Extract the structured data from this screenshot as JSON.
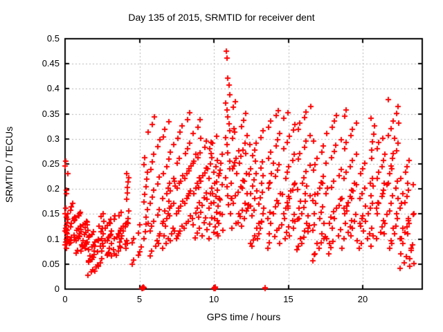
{
  "chart_data": {
    "type": "scatter",
    "title": "Day 135 of 2015, SRMTID for receiver dent",
    "xlabel": "GPS time / hours",
    "ylabel": "SRMTID / TECUs",
    "xlim": [
      0,
      24
    ],
    "ylim": [
      0,
      0.5
    ],
    "xtick_values": [
      0,
      5,
      10,
      15,
      20
    ],
    "xtick_labels": [
      "0",
      "5",
      "10",
      "15",
      "20"
    ],
    "ytick_values": [
      0,
      0.05,
      0.1,
      0.15,
      0.2,
      0.25,
      0.3,
      0.35,
      0.4,
      0.45,
      0.5
    ],
    "ytick_labels": [
      "0",
      "0.05",
      "0.1",
      "0.15",
      "0.2",
      "0.25",
      "0.3",
      "0.35",
      "0.4",
      "0.45",
      "0.5"
    ],
    "grid": true,
    "legend": "none",
    "marker": "plus",
    "marker_color": "#ff0000",
    "grid_color": "#b4b4b4",
    "frame_color": "#000000",
    "series_clusters": [
      {
        "x0": 0.0,
        "x1": 0.18,
        "ys": [
          0.088,
          0.094,
          0.1,
          0.105,
          0.11,
          0.116,
          0.121,
          0.127,
          0.133,
          0.14,
          0.151,
          0.162,
          0.19,
          0.198,
          0.231,
          0.246,
          0.256
        ]
      },
      {
        "x0": 0.05,
        "x1": 0.62,
        "ys": [
          0.082,
          0.091,
          0.097,
          0.104,
          0.108,
          0.113,
          0.118,
          0.124,
          0.131,
          0.137,
          0.144,
          0.151,
          0.158,
          0.165,
          0.171,
          0.119,
          0.099,
          0.092
        ]
      },
      {
        "x0": 0.62,
        "x1": 1.55,
        "ys": [
          0.072,
          0.078,
          0.084,
          0.089,
          0.093,
          0.097,
          0.101,
          0.105,
          0.109,
          0.113,
          0.117,
          0.121,
          0.126,
          0.131,
          0.136,
          0.141,
          0.147,
          0.154,
          0.081,
          0.09,
          0.098,
          0.107,
          0.114,
          0.123,
          0.129,
          0.138,
          0.146,
          0.076,
          0.086,
          0.094,
          0.103,
          0.111,
          0.119,
          0.128,
          0.134,
          0.143,
          0.151,
          0.088,
          0.096,
          0.117
        ]
      },
      {
        "x0": 1.55,
        "x1": 2.25,
        "ys": [
          0.028,
          0.034,
          0.039,
          0.044,
          0.049,
          0.054,
          0.059,
          0.064,
          0.069,
          0.074,
          0.079,
          0.084,
          0.089,
          0.094,
          0.099,
          0.104,
          0.109,
          0.114,
          0.036,
          0.046,
          0.056,
          0.066,
          0.076,
          0.086,
          0.096,
          0.106
        ]
      },
      {
        "x0": 2.3,
        "x1": 3.25,
        "ys": [
          0.052,
          0.061,
          0.067,
          0.073,
          0.079,
          0.085,
          0.091,
          0.097,
          0.103,
          0.109,
          0.115,
          0.121,
          0.127,
          0.133,
          0.139,
          0.145,
          0.151,
          0.071,
          0.081,
          0.091,
          0.101,
          0.111,
          0.121,
          0.131,
          0.066,
          0.076,
          0.086,
          0.096,
          0.106,
          0.116,
          0.126,
          0.136
        ]
      },
      {
        "x0": 3.3,
        "x1": 4.3,
        "ys": [
          0.068,
          0.076,
          0.083,
          0.09,
          0.097,
          0.104,
          0.111,
          0.118,
          0.125,
          0.132,
          0.139,
          0.146,
          0.153,
          0.081,
          0.091,
          0.101,
          0.111,
          0.121,
          0.131,
          0.141,
          0.071,
          0.086,
          0.101,
          0.116,
          0.131,
          0.146,
          0.094,
          0.106,
          0.126,
          0.156
        ]
      },
      {
        "x0": 4.12,
        "x1": 4.3,
        "ys": [
          0.18,
          0.192,
          0.203,
          0.214,
          0.222,
          0.231
        ]
      },
      {
        "x0": 4.4,
        "x1": 5.3,
        "ys": [
          0.05,
          0.058,
          0.067,
          0.075,
          0.084,
          0.092,
          0.101,
          0.112,
          0.128
        ]
      },
      {
        "x0": 5.14,
        "x1": 5.3,
        "ys": [
          0.002,
          0.003,
          0.002,
          0.004,
          0.003
        ]
      },
      {
        "x0": 5.3,
        "x1": 5.56,
        "ys": [
          0.101,
          0.115,
          0.13,
          0.144,
          0.159,
          0.174,
          0.189,
          0.204,
          0.219,
          0.234,
          0.249,
          0.263
        ]
      },
      {
        "x0": 5.6,
        "x1": 6.45,
        "ys": [
          0.066,
          0.076,
          0.086,
          0.096,
          0.106,
          0.116,
          0.126,
          0.136,
          0.148,
          0.159,
          0.171,
          0.184,
          0.197,
          0.21,
          0.224,
          0.239,
          0.254,
          0.269,
          0.284,
          0.299,
          0.314,
          0.329,
          0.344,
          0.091,
          0.111,
          0.131
        ]
      },
      {
        "x0": 6.55,
        "x1": 7.35,
        "ys": [
          0.081,
          0.091,
          0.101,
          0.111,
          0.121,
          0.131,
          0.141,
          0.151,
          0.161,
          0.171,
          0.181,
          0.191,
          0.201,
          0.211,
          0.221,
          0.231,
          0.245,
          0.259,
          0.274,
          0.289,
          0.304,
          0.319,
          0.334,
          0.096,
          0.116,
          0.136,
          0.156,
          0.176,
          0.196,
          0.216,
          0.106,
          0.126,
          0.146,
          0.166
        ]
      },
      {
        "x0": 7.4,
        "x1": 8.55,
        "ys": [
          0.101,
          0.111,
          0.121,
          0.131,
          0.141,
          0.151,
          0.161,
          0.171,
          0.181,
          0.191,
          0.201,
          0.211,
          0.221,
          0.231,
          0.241,
          0.251,
          0.261,
          0.271,
          0.281,
          0.291,
          0.301,
          0.313,
          0.326,
          0.339,
          0.352,
          0.106,
          0.116,
          0.126,
          0.136,
          0.146,
          0.156,
          0.166,
          0.176,
          0.186,
          0.196,
          0.206,
          0.216,
          0.226,
          0.236,
          0.246
        ]
      },
      {
        "x0": 8.6,
        "x1": 9.6,
        "ys": [
          0.102,
          0.112,
          0.122,
          0.132,
          0.142,
          0.152,
          0.162,
          0.172,
          0.182,
          0.192,
          0.202,
          0.212,
          0.222,
          0.232,
          0.242,
          0.252,
          0.262,
          0.272,
          0.283,
          0.296,
          0.311,
          0.323,
          0.339,
          0.107,
          0.119,
          0.129,
          0.143,
          0.153,
          0.167,
          0.179,
          0.191,
          0.203,
          0.215,
          0.227,
          0.241,
          0.256,
          0.269,
          0.301
        ]
      },
      {
        "x0": 9.65,
        "x1": 10.6,
        "ys": [
          0.101,
          0.113,
          0.125,
          0.137,
          0.149,
          0.161,
          0.173,
          0.185,
          0.197,
          0.209,
          0.221,
          0.233,
          0.245,
          0.257,
          0.269,
          0.281,
          0.293,
          0.305,
          0.106,
          0.118,
          0.13,
          0.142,
          0.154,
          0.166,
          0.178,
          0.19,
          0.202,
          0.214,
          0.226,
          0.238,
          0.25,
          0.262,
          0.111,
          0.131,
          0.151,
          0.171,
          0.191,
          0.211,
          0.231,
          0.251,
          0.271,
          0.291,
          0.141,
          0.181
        ]
      },
      {
        "x0": 10.0,
        "x1": 10.14,
        "ys": [
          0.002,
          0.003,
          0.002,
          0.004,
          0.003
        ]
      },
      {
        "x0": 10.78,
        "x1": 11.12,
        "ys": [
          0.475,
          0.462,
          0.421,
          0.408,
          0.388,
          0.372,
          0.358,
          0.344,
          0.33,
          0.316,
          0.302,
          0.288,
          0.272,
          0.256,
          0.24,
          0.222,
          0.204,
          0.186,
          0.168,
          0.151
        ]
      },
      {
        "x0": 11.15,
        "x1": 12.4,
        "ys": [
          0.121,
          0.133,
          0.145,
          0.157,
          0.169,
          0.181,
          0.193,
          0.205,
          0.217,
          0.229,
          0.241,
          0.253,
          0.265,
          0.277,
          0.289,
          0.301,
          0.313,
          0.325,
          0.337,
          0.351,
          0.363,
          0.375,
          0.126,
          0.141,
          0.156,
          0.171,
          0.186,
          0.201,
          0.216,
          0.231,
          0.246,
          0.261,
          0.276,
          0.291,
          0.306,
          0.321,
          0.131,
          0.151,
          0.171,
          0.191,
          0.211,
          0.231,
          0.251,
          0.271,
          0.161,
          0.181
        ]
      },
      {
        "x0": 12.45,
        "x1": 13.4,
        "ys": [
          0.086,
          0.098,
          0.11,
          0.122,
          0.134,
          0.146,
          0.158,
          0.17,
          0.182,
          0.194,
          0.206,
          0.218,
          0.23,
          0.242,
          0.254,
          0.266,
          0.278,
          0.291,
          0.303,
          0.316,
          0.091,
          0.106,
          0.121,
          0.136,
          0.151,
          0.166,
          0.181,
          0.196,
          0.211,
          0.226,
          0.241,
          0.256,
          0.101,
          0.131,
          0.161,
          0.191
        ]
      },
      {
        "x0": 13.42,
        "x1": 13.5,
        "ys": [
          0.002,
          0.003
        ]
      },
      {
        "x0": 13.55,
        "x1": 14.6,
        "ys": [
          0.081,
          0.093,
          0.105,
          0.117,
          0.129,
          0.141,
          0.153,
          0.165,
          0.177,
          0.189,
          0.201,
          0.213,
          0.225,
          0.237,
          0.249,
          0.261,
          0.273,
          0.286,
          0.299,
          0.311,
          0.323,
          0.335,
          0.347,
          0.356,
          0.091,
          0.111,
          0.131,
          0.151,
          0.171,
          0.191,
          0.211,
          0.231,
          0.251,
          0.121
        ]
      },
      {
        "x0": 14.7,
        "x1": 15.5,
        "ys": [
          0.101,
          0.113,
          0.125,
          0.137,
          0.149,
          0.161,
          0.173,
          0.185,
          0.197,
          0.209,
          0.221,
          0.233,
          0.245,
          0.257,
          0.269,
          0.281,
          0.293,
          0.305,
          0.317,
          0.329,
          0.341,
          0.352,
          0.106,
          0.121,
          0.136,
          0.151,
          0.166,
          0.181,
          0.196,
          0.211,
          0.141,
          0.161
        ]
      },
      {
        "x0": 15.6,
        "x1": 16.5,
        "ys": [
          0.079,
          0.091,
          0.103,
          0.115,
          0.127,
          0.139,
          0.151,
          0.163,
          0.175,
          0.187,
          0.199,
          0.211,
          0.223,
          0.235,
          0.247,
          0.259,
          0.271,
          0.283,
          0.295,
          0.307,
          0.319,
          0.331,
          0.343,
          0.354,
          0.365,
          0.086,
          0.101,
          0.116,
          0.131,
          0.146,
          0.161,
          0.176,
          0.191,
          0.206,
          0.121,
          0.141
        ]
      },
      {
        "x0": 16.55,
        "x1": 17.5,
        "ys": [
          0.056,
          0.069,
          0.081,
          0.093,
          0.105,
          0.117,
          0.129,
          0.141,
          0.153,
          0.165,
          0.177,
          0.189,
          0.201,
          0.213,
          0.225,
          0.237,
          0.249,
          0.261,
          0.273,
          0.286,
          0.296,
          0.071,
          0.091,
          0.111,
          0.131,
          0.151,
          0.171,
          0.191,
          0.211,
          0.101
        ]
      },
      {
        "x0": 17.55,
        "x1": 18.65,
        "ys": [
          0.071,
          0.083,
          0.095,
          0.107,
          0.119,
          0.131,
          0.143,
          0.155,
          0.167,
          0.179,
          0.191,
          0.203,
          0.215,
          0.227,
          0.239,
          0.251,
          0.263,
          0.275,
          0.287,
          0.299,
          0.311,
          0.323,
          0.336,
          0.346,
          0.081,
          0.101,
          0.121,
          0.141,
          0.161,
          0.181,
          0.201,
          0.091
        ]
      },
      {
        "x0": 18.7,
        "x1": 19.6,
        "ys": [
          0.101,
          0.113,
          0.125,
          0.137,
          0.149,
          0.161,
          0.173,
          0.185,
          0.197,
          0.209,
          0.221,
          0.233,
          0.245,
          0.257,
          0.269,
          0.281,
          0.293,
          0.306,
          0.319,
          0.331,
          0.345,
          0.358,
          0.106,
          0.121,
          0.136,
          0.151,
          0.166,
          0.181,
          0.196,
          0.211,
          0.131,
          0.156
        ]
      },
      {
        "x0": 19.65,
        "x1": 20.85,
        "ys": [
          0.081,
          0.091,
          0.101,
          0.111,
          0.121,
          0.131,
          0.141,
          0.151,
          0.161,
          0.171,
          0.181,
          0.191,
          0.201,
          0.211,
          0.221,
          0.231,
          0.241,
          0.251,
          0.086,
          0.106,
          0.126,
          0.146,
          0.166,
          0.186,
          0.206,
          0.096,
          0.116,
          0.136
        ]
      },
      {
        "x0": 20.55,
        "x1": 20.8,
        "ys": [
          0.261,
          0.278,
          0.294,
          0.31,
          0.326,
          0.341
        ]
      },
      {
        "x0": 20.9,
        "x1": 21.65,
        "ys": [
          0.101,
          0.113,
          0.125,
          0.137,
          0.149,
          0.161,
          0.173,
          0.185,
          0.197,
          0.209,
          0.221,
          0.233,
          0.245,
          0.257,
          0.269,
          0.281,
          0.293,
          0.301,
          0.111,
          0.131,
          0.151,
          0.171,
          0.191,
          0.211
        ]
      },
      {
        "x0": 21.7,
        "x1": 22.45,
        "ys": [
          0.081,
          0.096,
          0.111,
          0.126,
          0.141,
          0.156,
          0.171,
          0.186,
          0.201,
          0.216,
          0.231,
          0.246,
          0.261,
          0.276,
          0.291,
          0.306,
          0.321,
          0.336,
          0.351,
          0.365,
          0.379,
          0.091,
          0.121,
          0.151,
          0.181,
          0.211,
          0.241,
          0.271,
          0.301,
          0.331
        ]
      },
      {
        "x0": 22.5,
        "x1": 23.45,
        "ys": [
          0.041,
          0.053,
          0.065,
          0.077,
          0.089,
          0.101,
          0.113,
          0.125,
          0.137,
          0.149,
          0.161,
          0.173,
          0.185,
          0.197,
          0.209,
          0.221,
          0.233,
          0.245,
          0.257,
          0.051,
          0.071,
          0.091,
          0.111,
          0.131,
          0.151,
          0.171,
          0.191,
          0.211,
          0.061,
          0.081,
          0.101,
          0.121,
          0.141,
          0.046
        ]
      }
    ]
  }
}
